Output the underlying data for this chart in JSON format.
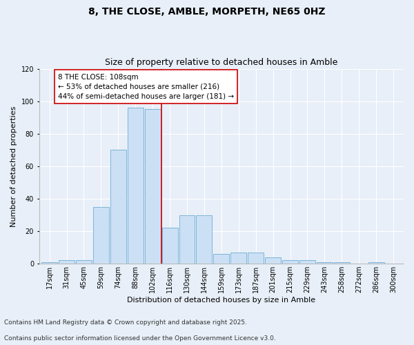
{
  "title": "8, THE CLOSE, AMBLE, MORPETH, NE65 0HZ",
  "subtitle": "Size of property relative to detached houses in Amble",
  "xlabel": "Distribution of detached houses by size in Amble",
  "ylabel": "Number of detached properties",
  "categories": [
    "17sqm",
    "31sqm",
    "45sqm",
    "59sqm",
    "74sqm",
    "88sqm",
    "102sqm",
    "116sqm",
    "130sqm",
    "144sqm",
    "159sqm",
    "173sqm",
    "187sqm",
    "201sqm",
    "215sqm",
    "229sqm",
    "243sqm",
    "258sqm",
    "272sqm",
    "286sqm",
    "300sqm"
  ],
  "bar_values": [
    1,
    2,
    2,
    35,
    70,
    96,
    95,
    22,
    30,
    30,
    6,
    7,
    7,
    4,
    2,
    2,
    1,
    1,
    0,
    1,
    0
  ],
  "bar_color": "#cce0f5",
  "bar_edge_color": "#7ab4d8",
  "background_color": "#e8eff8",
  "grid_color": "#ffffff",
  "property_line_color": "#cc0000",
  "property_line_xindex": 6.5,
  "annotation_text": "8 THE CLOSE: 108sqm\n← 53% of detached houses are smaller (216)\n44% of semi-detached houses are larger (181) →",
  "annotation_box_facecolor": "#ffffff",
  "annotation_box_edgecolor": "#cc0000",
  "ylim": [
    0,
    120
  ],
  "yticks": [
    0,
    20,
    40,
    60,
    80,
    100,
    120
  ],
  "footer1": "Contains HM Land Registry data © Crown copyright and database right 2025.",
  "footer2": "Contains public sector information licensed under the Open Government Licence v3.0.",
  "title_fontsize": 10,
  "subtitle_fontsize": 9,
  "axis_label_fontsize": 8,
  "tick_fontsize": 7,
  "annotation_fontsize": 7.5,
  "footer_fontsize": 6.5
}
